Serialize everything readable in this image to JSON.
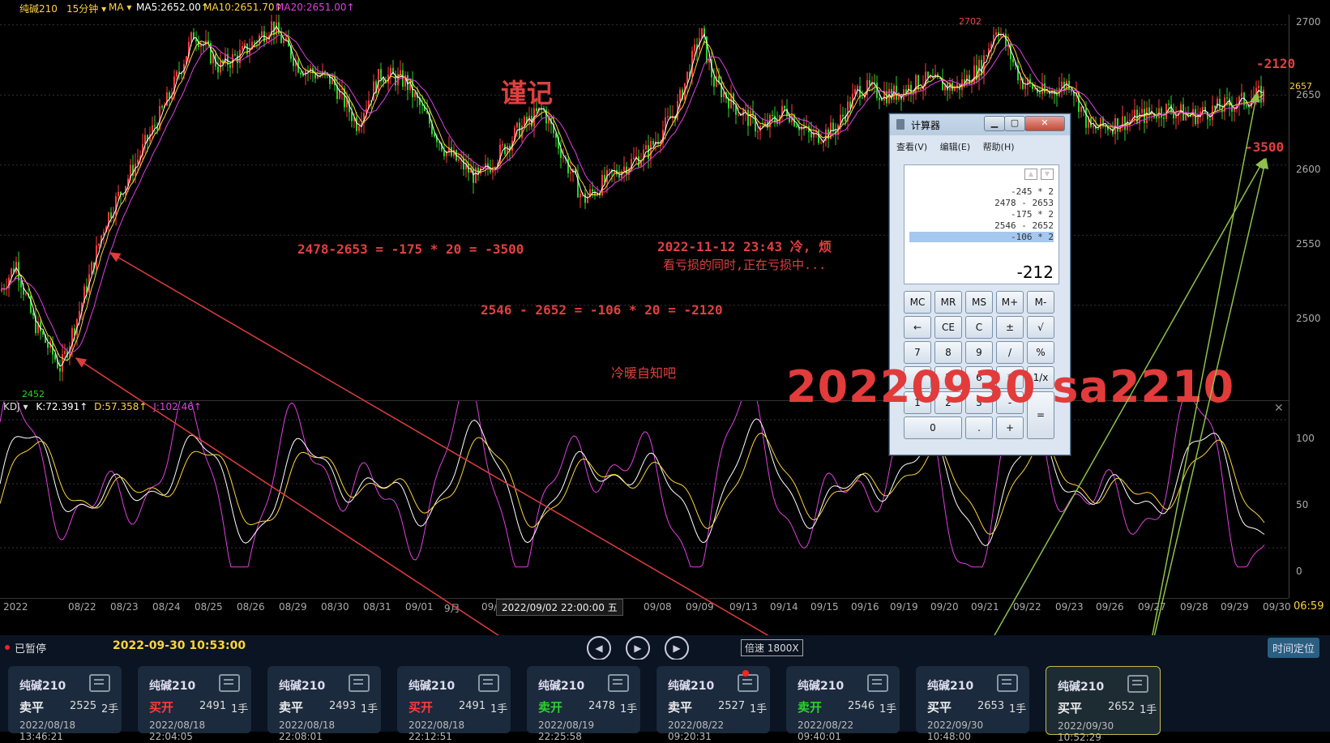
{
  "topbar": {
    "symbol": "纯碱210",
    "period": "15分钟 ▾",
    "ma_select": "MA ▾",
    "ma5": "MA5:2652.00↑",
    "ma10": "MA10:2651.70↑",
    "ma20": "MA20:2651.00↑"
  },
  "price_axis": [
    "2700",
    "2650",
    "2600",
    "2550",
    "2500"
  ],
  "price_current": "2657",
  "price_high_marker": "2702",
  "price_low_marker": "2452",
  "kdj_header": {
    "name": "KDJ ▾",
    "k": "K:72.391↑",
    "d": "D:57.358↑",
    "j": "J:102.46↑"
  },
  "kdj_axis": [
    "100",
    "50",
    "0"
  ],
  "x_axis": [
    "2022",
    "08/22",
    "08/23",
    "08/24",
    "08/25",
    "08/26",
    "08/29",
    "08/30",
    "08/31",
    "09/01",
    "9月",
    "09/",
    "07",
    "09/08",
    "09/09",
    "09/13",
    "09/14",
    "09/15",
    "09/16",
    "09/19",
    "09/20",
    "09/21",
    "09/22",
    "09/23",
    "09/26",
    "09/27",
    "09/28",
    "09/29",
    "09/30"
  ],
  "crosshair_time": "2022/09/02 22:00:00 五",
  "clock": "06:59",
  "annotations": {
    "title_mark": "谨记",
    "calc1": "2478-2653 = -175 * 20 =  -3500",
    "note_line1": "2022-11-12  23:43  冷, 烦",
    "note_line2": "看亏损的同时,正在亏损中...",
    "calc2": "2546 - 2652 = -106 * 20 =  -2120",
    "note3": "冷暖自知吧",
    "right_val1": "-2120",
    "right_val2": "-3500",
    "big_title": "20220930 sa2210"
  },
  "calculator": {
    "title": "计算器",
    "menu": [
      "查看(V)",
      "编辑(E)",
      "帮助(H)"
    ],
    "history": [
      "-245 * 2",
      "2478 - 2653",
      "-175 * 2",
      "2546 - 2652",
      "-106 * 2"
    ],
    "result": "-212",
    "buttons_row1": [
      "MC",
      "MR",
      "MS",
      "M+",
      "M-"
    ],
    "buttons_row2": [
      "←",
      "CE",
      "C",
      "±",
      "√"
    ],
    "buttons_row3": [
      "7",
      "8",
      "9",
      "/",
      "%"
    ],
    "buttons_row4": [
      "4",
      "5",
      "6",
      "*",
      "1/x"
    ],
    "buttons_row5": [
      "1",
      "2",
      "3",
      "-"
    ],
    "equals": "=",
    "zero": "0",
    "dot": ".",
    "plus": "+",
    "win_min": "▁",
    "win_max": "▢",
    "win_close": "✕"
  },
  "controls": {
    "status": "已暂停",
    "datetime": "2022-09-30 10:53:00",
    "speed": "倍速 1800X",
    "locate": "时间定位"
  },
  "trades": [
    {
      "name": "纯碱210",
      "side": "卖平",
      "price": "2525",
      "qty": "2手",
      "time": "2022/08/18 13:46:21",
      "color": "white"
    },
    {
      "name": "纯碱210",
      "side": "买开",
      "price": "2491",
      "qty": "1手",
      "time": "2022/08/18 22:04:05",
      "color": "red"
    },
    {
      "name": "纯碱210",
      "side": "卖平",
      "price": "2493",
      "qty": "1手",
      "time": "2022/08/18 22:08:01",
      "color": "white"
    },
    {
      "name": "纯碱210",
      "side": "买开",
      "price": "2491",
      "qty": "1手",
      "time": "2022/08/18 22:12:51",
      "color": "red"
    },
    {
      "name": "纯碱210",
      "side": "卖开",
      "price": "2478",
      "qty": "1手",
      "time": "2022/08/19 22:25:58",
      "color": "green"
    },
    {
      "name": "纯碱210",
      "side": "卖平",
      "price": "2527",
      "qty": "1手",
      "time": "2022/08/22 09:20:31",
      "color": "white"
    },
    {
      "name": "纯碱210",
      "side": "卖开",
      "price": "2546",
      "qty": "1手",
      "time": "2022/08/22 09:40:01",
      "color": "green"
    },
    {
      "name": "纯碱210",
      "side": "买平",
      "price": "2653",
      "qty": "1手",
      "time": "2022/09/30 10:48:00",
      "color": "white"
    },
    {
      "name": "纯碱210",
      "side": "买平",
      "price": "2652",
      "qty": "1手",
      "time": "2022/09/30 10:52:29",
      "color": "white"
    }
  ]
}
